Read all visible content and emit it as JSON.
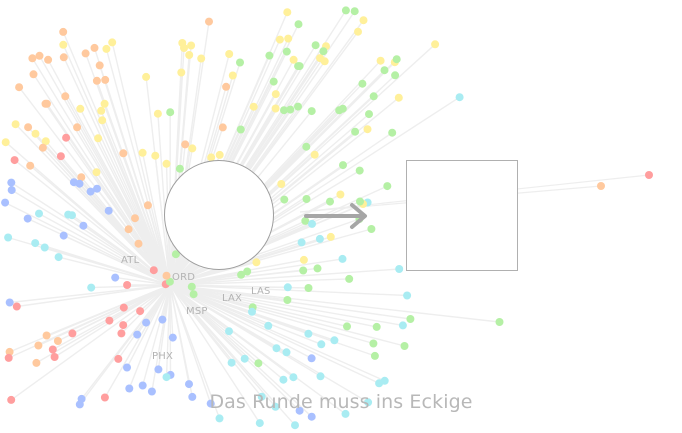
{
  "labels": {
    "airports": [
      "ATL",
      "ORD",
      "LAX",
      "LAS",
      "MSP",
      "PHX"
    ]
  },
  "caption": "Das Runde muss ins Eckige",
  "colors": {
    "background": "#ffffff",
    "edges": "#eeeeee",
    "arrow": "#a6a6a6",
    "shape_stroke": "#9e9e9e",
    "dots": [
      "#ff9e9e",
      "#ffc99e",
      "#fff09a",
      "#b5f0a5",
      "#a9ecf2",
      "#a9c0ff"
    ]
  },
  "icons": [
    "circle-shape",
    "square-shape",
    "arrow-right-icon"
  ]
}
